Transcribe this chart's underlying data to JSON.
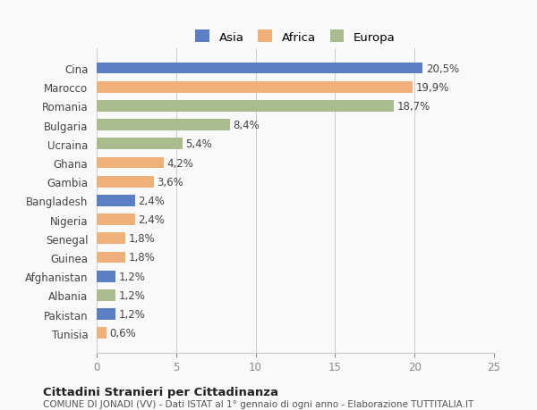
{
  "categories": [
    "Cina",
    "Marocco",
    "Romania",
    "Bulgaria",
    "Ucraina",
    "Ghana",
    "Gambia",
    "Bangladesh",
    "Nigeria",
    "Senegal",
    "Guinea",
    "Afghanistan",
    "Albania",
    "Pakistan",
    "Tunisia"
  ],
  "values": [
    20.5,
    19.9,
    18.7,
    8.4,
    5.4,
    4.2,
    3.6,
    2.4,
    2.4,
    1.8,
    1.8,
    1.2,
    1.2,
    1.2,
    0.6
  ],
  "continents": [
    "Asia",
    "Africa",
    "Europa",
    "Europa",
    "Europa",
    "Africa",
    "Africa",
    "Asia",
    "Africa",
    "Africa",
    "Africa",
    "Asia",
    "Europa",
    "Asia",
    "Africa"
  ],
  "colors": {
    "Asia": "#5b7fc4",
    "Africa": "#f0b07a",
    "Europa": "#a8bc8e"
  },
  "legend_order": [
    "Asia",
    "Africa",
    "Europa"
  ],
  "xlim": [
    0,
    25
  ],
  "xticks": [
    0,
    5,
    10,
    15,
    20,
    25
  ],
  "title": "Cittadini Stranieri per Cittadinanza",
  "subtitle": "COMUNE DI JONADI (VV) - Dati ISTAT al 1° gennaio di ogni anno - Elaborazione TUTTITALIA.IT",
  "bg_color": "#f9f9f9",
  "bar_height": 0.6,
  "label_fontsize": 8.5,
  "value_label_fontsize": 8.5
}
